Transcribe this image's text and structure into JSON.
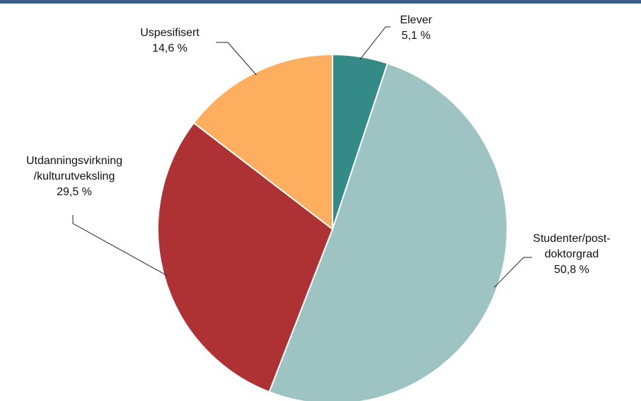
{
  "chart_data": {
    "type": "pie",
    "categories": [
      "Elever",
      "Studenter/post-\ndoktorgrad",
      "Utdanningsvirkning\n/kulturutveksling",
      "Uspesifisert"
    ],
    "values": [
      5.1,
      50.8,
      29.5,
      14.6
    ],
    "value_labels": [
      "5,1 %",
      "50,8 %",
      "29,5 %",
      "14,6 %"
    ],
    "colors": [
      "#348a87",
      "#9dc3c3",
      "#ae3234",
      "#fdae5f"
    ]
  }
}
